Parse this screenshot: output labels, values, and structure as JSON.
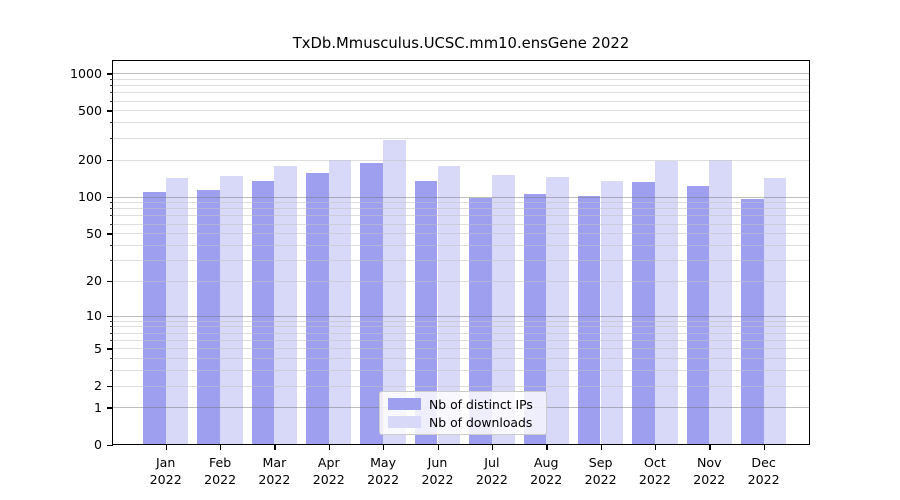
{
  "chart_data": {
    "type": "bar",
    "title": "TxDb.Mmusculus.UCSC.mm10.ensGene 2022",
    "year": "2022",
    "categories": [
      "Jan",
      "Feb",
      "Mar",
      "Apr",
      "May",
      "Jun",
      "Jul",
      "Aug",
      "Sep",
      "Oct",
      "Nov",
      "Dec"
    ],
    "series": [
      {
        "name": "Nb of distinct IPs",
        "color": "#9f9ff0",
        "values": [
          108,
          114,
          135,
          157,
          186,
          133,
          98,
          105,
          101,
          131,
          121,
          96
        ]
      },
      {
        "name": "Nb of downloads",
        "color": "#d8d8f8",
        "values": [
          142,
          146,
          178,
          199,
          290,
          176,
          151,
          143,
          134,
          195,
          200,
          141
        ]
      }
    ],
    "yscale": "log1p",
    "yticks": [
      0,
      1,
      2,
      5,
      10,
      20,
      50,
      100,
      200,
      500,
      1000
    ],
    "ylim": [
      0,
      1280
    ],
    "grid": true,
    "legend_position": "lower-center-inside",
    "colors": {
      "axis": "#000000",
      "grid_major": "#bdbdbd",
      "grid_minor": "#e6e6e6",
      "background": "#ffffff"
    }
  }
}
